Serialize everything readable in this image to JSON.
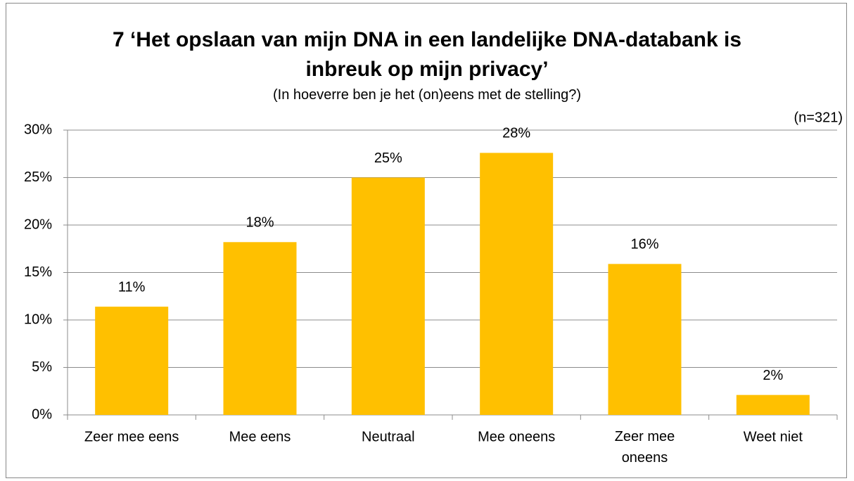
{
  "chart_data": {
    "type": "bar",
    "title": "7 ‘Het opslaan van mijn DNA in een landelijke DNA-databank is inbreuk op mijn privacy’",
    "subtitle": "(In hoeverre ben je het (on)eens met de stelling?)",
    "annotation": "(n=321)",
    "categories": [
      "Zeer mee eens",
      "Mee eens",
      "Neutraal",
      "Mee oneens",
      "Zeer mee oneens",
      "Weet niet"
    ],
    "values": [
      11.4,
      18.2,
      25.0,
      27.6,
      15.9,
      2.1
    ],
    "value_labels": [
      "11%",
      "18%",
      "25%",
      "28%",
      "16%",
      "2%"
    ],
    "color": "#ffc000",
    "ylim": [
      0,
      30
    ],
    "yticks": [
      {
        "value": 0,
        "label": "0%"
      },
      {
        "value": 5,
        "label": "5%"
      },
      {
        "value": 10,
        "label": "10%"
      },
      {
        "value": 15,
        "label": "15%"
      },
      {
        "value": 20,
        "label": "20%"
      },
      {
        "value": 25,
        "label": "25%"
      },
      {
        "value": 30,
        "label": "30%"
      }
    ],
    "grid": true
  }
}
